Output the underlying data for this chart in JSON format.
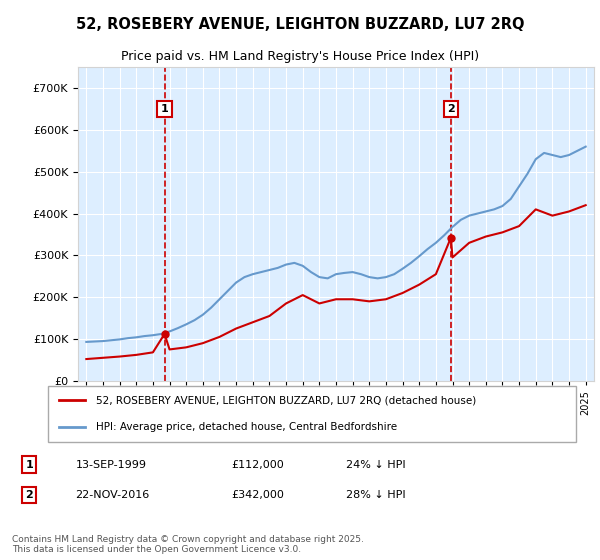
{
  "title": "52, ROSEBERY AVENUE, LEIGHTON BUZZARD, LU7 2RQ",
  "subtitle": "Price paid vs. HM Land Registry's House Price Index (HPI)",
  "legend_line1": "52, ROSEBERY AVENUE, LEIGHTON BUZZARD, LU7 2RQ (detached house)",
  "legend_line2": "HPI: Average price, detached house, Central Bedfordshire",
  "footnote": "Contains HM Land Registry data © Crown copyright and database right 2025.\nThis data is licensed under the Open Government Licence v3.0.",
  "sale1_label": "1",
  "sale1_date": "13-SEP-1999",
  "sale1_price": "£112,000",
  "sale1_hpi": "24% ↓ HPI",
  "sale2_label": "2",
  "sale2_date": "22-NOV-2016",
  "sale2_price": "£342,000",
  "sale2_hpi": "28% ↓ HPI",
  "red_color": "#cc0000",
  "blue_color": "#6699cc",
  "plot_bg": "#ddeeff",
  "marker1_year": 1999.7,
  "marker1_price": 112000,
  "marker2_year": 2016.9,
  "marker2_price": 342000,
  "ylim": [
    0,
    750000
  ],
  "xlim_start": 1994.5,
  "xlim_end": 2025.5,
  "hpi_years": [
    1995,
    1995.5,
    1996,
    1996.5,
    1997,
    1997.5,
    1998,
    1998.5,
    1999,
    1999.5,
    2000,
    2000.5,
    2001,
    2001.5,
    2002,
    2002.5,
    2003,
    2003.5,
    2004,
    2004.5,
    2005,
    2005.5,
    2006,
    2006.5,
    2007,
    2007.5,
    2008,
    2008.5,
    2009,
    2009.5,
    2010,
    2010.5,
    2011,
    2011.5,
    2012,
    2012.5,
    2013,
    2013.5,
    2014,
    2014.5,
    2015,
    2015.5,
    2016,
    2016.5,
    2017,
    2017.5,
    2018,
    2018.5,
    2019,
    2019.5,
    2020,
    2020.5,
    2021,
    2021.5,
    2022,
    2022.5,
    2023,
    2023.5,
    2024,
    2024.5,
    2025
  ],
  "hpi_values": [
    93000,
    94000,
    95000,
    97000,
    99000,
    102000,
    104000,
    107000,
    109000,
    112000,
    118000,
    126000,
    135000,
    145000,
    158000,
    175000,
    195000,
    215000,
    235000,
    248000,
    255000,
    260000,
    265000,
    270000,
    278000,
    282000,
    275000,
    260000,
    248000,
    245000,
    255000,
    258000,
    260000,
    255000,
    248000,
    245000,
    248000,
    255000,
    268000,
    282000,
    298000,
    315000,
    330000,
    348000,
    368000,
    385000,
    395000,
    400000,
    405000,
    410000,
    418000,
    435000,
    465000,
    495000,
    530000,
    545000,
    540000,
    535000,
    540000,
    550000,
    560000
  ],
  "red_years": [
    1995,
    1996,
    1997,
    1998,
    1999,
    1999.7,
    2000,
    2001,
    2002,
    2003,
    2004,
    2005,
    2006,
    2007,
    2008,
    2009,
    2010,
    2011,
    2012,
    2013,
    2014,
    2015,
    2016,
    2016.9,
    2017,
    2018,
    2019,
    2020,
    2021,
    2022,
    2023,
    2024,
    2025
  ],
  "red_values": [
    52000,
    55000,
    58000,
    62000,
    68000,
    112000,
    75000,
    80000,
    90000,
    105000,
    125000,
    140000,
    155000,
    185000,
    205000,
    185000,
    195000,
    195000,
    190000,
    195000,
    210000,
    230000,
    255000,
    342000,
    295000,
    330000,
    345000,
    355000,
    370000,
    410000,
    395000,
    405000,
    420000
  ]
}
